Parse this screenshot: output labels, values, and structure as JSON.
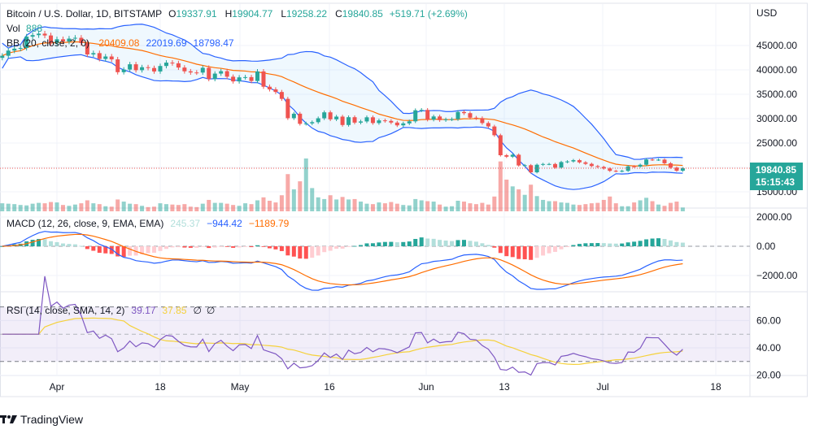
{
  "header": {
    "symbol": "Bitcoin / U.S. Dollar, 1D, BITSTAMP",
    "o_label": "O",
    "open": "19337.91",
    "h_label": "H",
    "high": "19904.77",
    "l_label": "L",
    "low": "19258.22",
    "c_label": "C",
    "close": "19840.85",
    "change": "+519.71 (+2.69%)"
  },
  "vol": {
    "label": "Vol",
    "value": "888"
  },
  "bb": {
    "label": "BB (20, close, 2, 0)",
    "basis": "20409.08",
    "upper": "22019.69",
    "lower": "18798.47"
  },
  "macd": {
    "label": "MACD (12, 26, close, 9, EMA, EMA)",
    "hist": "245.37",
    "macd": "−944.42",
    "signal": "−1189.79"
  },
  "rsi": {
    "label": "RSI (14, close, SMA, 14, 2)",
    "rsi": "39.17",
    "ma": "37.85",
    "x1": "∅",
    "x2": "∅"
  },
  "price_axis": {
    "currency": "USD",
    "ticks": [
      "45000.00",
      "40000.00",
      "35000.00",
      "30000.00",
      "25000.00",
      "15000.00"
    ],
    "last_price": "19840.85",
    "countdown": "15:15:43"
  },
  "macd_axis": {
    "ticks": [
      "2000.00",
      "0.00",
      "−2000.00"
    ]
  },
  "rsi_axis": {
    "ticks": [
      "60.00",
      "40.00",
      "20.00"
    ]
  },
  "time_axis": {
    "ticks": [
      "Apr",
      "18",
      "May",
      "16",
      "Jun",
      "13",
      "Jul",
      "18"
    ]
  },
  "branding": {
    "name": "TradingView"
  },
  "colors": {
    "up": "#26a69a",
    "down": "#ef5350",
    "bb_band": "#2962ff",
    "bb_basis": "#ff6d00",
    "macd": "#2962ff",
    "signal": "#ff6d00",
    "rsi": "#7e57c2",
    "rsi_ma": "#f5d13b"
  },
  "chart_data": {
    "type": "candlestick",
    "start_date": "2022-03-23",
    "interval": "1D",
    "closes": [
      42900,
      43960,
      44350,
      44500,
      46820,
      47130,
      47430,
      47060,
      45530,
      46280,
      45810,
      46410,
      46580,
      45500,
      43170,
      43440,
      42250,
      42750,
      42160,
      39530,
      40070,
      41150,
      39940,
      40550,
      40390,
      39680,
      40800,
      41490,
      41360,
      40480,
      39710,
      39470,
      39450,
      40430,
      38120,
      39240,
      39740,
      38600,
      37640,
      38470,
      38520,
      37730,
      39690,
      36550,
      36010,
      35470,
      34060,
      30100,
      31020,
      28940,
      29030,
      29280,
      30080,
      31300,
      29860,
      30420,
      28700,
      30300,
      29190,
      29430,
      30280,
      29100,
      29650,
      29540,
      29200,
      28630,
      29030,
      29450,
      31720,
      31790,
      29800,
      30450,
      29700,
      29860,
      29900,
      31370,
      31130,
      30200,
      30100,
      29100,
      28400,
      26600,
      22500,
      22200,
      22600,
      20400,
      20450,
      19000,
      20550,
      20700,
      20700,
      19970,
      21100,
      21230,
      21490,
      21040,
      20730,
      20280,
      20100,
      19780,
      19300,
      19230,
      19300,
      20220,
      20180,
      20550,
      21620,
      21590,
      21590,
      20850,
      19960,
      19330,
      19840.85
    ],
    "volumes": [
      1900,
      1800,
      1700,
      1500,
      1400,
      1800,
      2000,
      1900,
      2200,
      2100,
      1500,
      1300,
      1600,
      1900,
      2600,
      1900,
      1700,
      1200,
      1100,
      2800,
      2300,
      1800,
      1700,
      1300,
      1000,
      1100,
      1900,
      1700,
      1600,
      1500,
      1700,
      1100,
      1000,
      1800,
      2700,
      2000,
      2000,
      1800,
      1500,
      1300,
      1900,
      1700,
      2600,
      3300,
      2500,
      2100,
      3800,
      8800,
      5200,
      7100,
      12500,
      5500,
      3300,
      2900,
      3800,
      2800,
      3400,
      2800,
      2900,
      2300,
      1800,
      1700,
      2100,
      1900,
      2200,
      1800,
      1500,
      1400,
      2900,
      2600,
      2400,
      2300,
      1600,
      1100,
      1200,
      2500,
      2300,
      1900,
      1700,
      2000,
      1600,
      3500,
      11800,
      7500,
      5900,
      5200,
      3900,
      6300,
      3600,
      2700,
      2400,
      2400,
      2100,
      2000,
      1600,
      1500,
      1700,
      1900,
      2000,
      2700,
      3500,
      1900,
      1200,
      1200,
      2100,
      2600,
      3200,
      2400,
      1600,
      1300,
      2000,
      2300,
      900
    ],
    "price_range": [
      12000,
      49000
    ],
    "bollinger": {
      "period": 20,
      "mult": 2
    },
    "macd_params": [
      12,
      26,
      9
    ],
    "macd_range": [
      -3200,
      2400
    ],
    "rsi_period": 14,
    "rsi_ma_period": 14,
    "rsi_range": [
      18,
      78
    ],
    "rsi_bands": [
      70,
      50,
      30
    ]
  }
}
